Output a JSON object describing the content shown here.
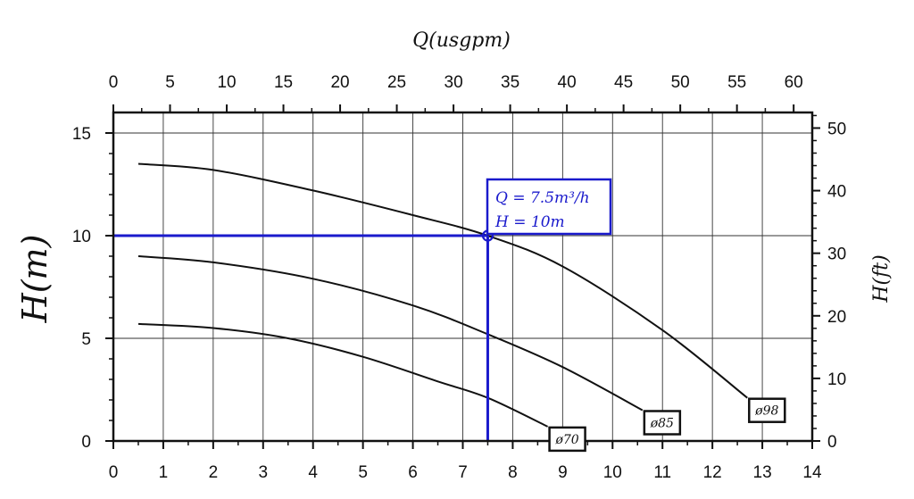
{
  "chart_data": {
    "type": "line",
    "xlabel_bottom": "",
    "xlabel_top": "Q(usgpm)",
    "ylabel_left": "H(m)",
    "ylabel_right": "H(ft)",
    "xlim": [
      0,
      14
    ],
    "ylim": [
      0,
      16
    ],
    "x_ticks": [
      0,
      1,
      2,
      3,
      4,
      5,
      6,
      7,
      8,
      9,
      10,
      11,
      12,
      13,
      14
    ],
    "y_ticks": [
      0,
      5,
      10,
      15
    ],
    "top_axis": {
      "lim": [
        0,
        61.64
      ],
      "ticks": [
        0,
        5,
        10,
        15,
        20,
        25,
        30,
        35,
        40,
        45,
        50,
        55,
        60
      ]
    },
    "right_axis": {
      "lim": [
        0,
        52.49
      ],
      "ticks": [
        0,
        10,
        20,
        30,
        40,
        50
      ]
    },
    "grid": true,
    "series": [
      {
        "name": "ø98",
        "color": "#111111",
        "x": [
          0.5,
          2,
          4,
          6,
          7.5,
          9,
          11,
          12.7
        ],
        "y": [
          13.5,
          13.2,
          12.2,
          11.0,
          10.0,
          8.5,
          5.4,
          2.1
        ]
      },
      {
        "name": "ø85",
        "color": "#111111",
        "x": [
          0.5,
          2,
          4,
          6,
          7.5,
          9,
          10.6
        ],
        "y": [
          9.0,
          8.7,
          7.9,
          6.6,
          5.2,
          3.6,
          1.5
        ]
      },
      {
        "name": "ø70",
        "color": "#111111",
        "x": [
          0.5,
          2,
          3.5,
          5,
          6.5,
          7.5,
          8.7
        ],
        "y": [
          5.7,
          5.5,
          5.0,
          4.1,
          2.9,
          2.1,
          0.7
        ]
      }
    ],
    "operating_point": {
      "x": 7.5,
      "y": 10,
      "color": "#1a1acc",
      "label_q": "Q = 7.5m³/h",
      "label_h": "H = 10m"
    }
  }
}
